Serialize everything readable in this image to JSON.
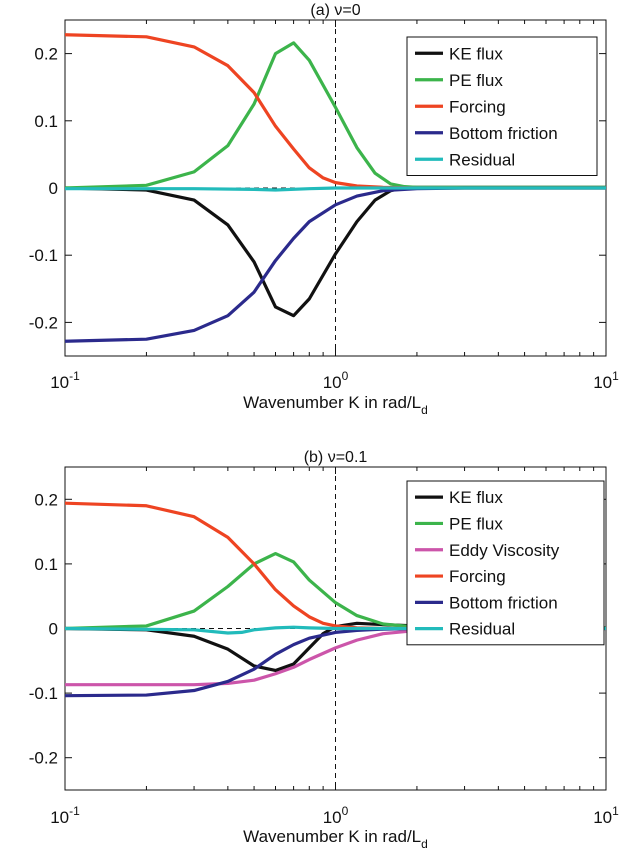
{
  "chart_data": [
    {
      "type": "line",
      "title": "(a) ν=0",
      "xlabel": "Wavenumber K in rad/L",
      "xlabel_subscript": "d",
      "xscale": "log",
      "xlim": [
        0.1,
        10
      ],
      "ylim": [
        -0.25,
        0.25
      ],
      "xticks": [
        {
          "value": 0.1,
          "base": "10",
          "exp": "-1"
        },
        {
          "value": 1,
          "base": "10",
          "exp": "0"
        },
        {
          "value": 10,
          "base": "10",
          "exp": "1"
        }
      ],
      "yticks": [
        {
          "value": -0.2,
          "label": "-0.2"
        },
        {
          "value": -0.1,
          "label": "-0.1"
        },
        {
          "value": 0,
          "label": "0"
        },
        {
          "value": 0.1,
          "label": "0.1"
        },
        {
          "value": 0.2,
          "label": "0.2"
        }
      ],
      "grid": false,
      "vline_x": 1,
      "hline_y": 0,
      "legend_position": "top-right",
      "series": [
        {
          "name": "KE flux",
          "color": "#111111",
          "points": [
            [
              0.1,
              0
            ],
            [
              0.2,
              -0.003
            ],
            [
              0.3,
              -0.018
            ],
            [
              0.4,
              -0.055
            ],
            [
              0.5,
              -0.11
            ],
            [
              0.6,
              -0.177
            ],
            [
              0.7,
              -0.19
            ],
            [
              0.8,
              -0.165
            ],
            [
              1.0,
              -0.098
            ],
            [
              1.2,
              -0.05
            ],
            [
              1.4,
              -0.018
            ],
            [
              1.6,
              -0.004
            ],
            [
              1.8,
              0.001
            ],
            [
              2.0,
              0.001
            ],
            [
              3,
              0.001
            ],
            [
              5,
              0.001
            ],
            [
              10,
              0.001
            ]
          ]
        },
        {
          "name": "PE flux",
          "color": "#3cb44b",
          "points": [
            [
              0.1,
              0
            ],
            [
              0.2,
              0.004
            ],
            [
              0.3,
              0.024
            ],
            [
              0.4,
              0.063
            ],
            [
              0.5,
              0.125
            ],
            [
              0.6,
              0.2
            ],
            [
              0.7,
              0.216
            ],
            [
              0.8,
              0.19
            ],
            [
              1.0,
              0.12
            ],
            [
              1.2,
              0.06
            ],
            [
              1.4,
              0.022
            ],
            [
              1.6,
              0.006
            ],
            [
              1.8,
              0.002
            ],
            [
              2.0,
              0.001
            ],
            [
              3,
              0.001
            ],
            [
              10,
              0.001
            ]
          ]
        },
        {
          "name": "Forcing",
          "color": "#ee4422",
          "points": [
            [
              0.1,
              0.228
            ],
            [
              0.2,
              0.225
            ],
            [
              0.3,
              0.21
            ],
            [
              0.4,
              0.182
            ],
            [
              0.5,
              0.142
            ],
            [
              0.6,
              0.092
            ],
            [
              0.7,
              0.058
            ],
            [
              0.8,
              0.03
            ],
            [
              0.9,
              0.015
            ],
            [
              1.0,
              0.008
            ],
            [
              1.2,
              0.003
            ],
            [
              1.5,
              0.001
            ],
            [
              2,
              0
            ],
            [
              10,
              0
            ]
          ]
        },
        {
          "name": "Bottom friction",
          "color": "#2b2a8c",
          "points": [
            [
              0.1,
              -0.228
            ],
            [
              0.2,
              -0.225
            ],
            [
              0.3,
              -0.212
            ],
            [
              0.4,
              -0.19
            ],
            [
              0.5,
              -0.155
            ],
            [
              0.6,
              -0.108
            ],
            [
              0.7,
              -0.075
            ],
            [
              0.8,
              -0.05
            ],
            [
              1.0,
              -0.025
            ],
            [
              1.2,
              -0.012
            ],
            [
              1.5,
              -0.004
            ],
            [
              2,
              -0.001
            ],
            [
              3,
              0
            ],
            [
              10,
              0
            ]
          ]
        },
        {
          "name": "Residual",
          "color": "#22bbbb",
          "points": [
            [
              0.1,
              -0.001
            ],
            [
              0.3,
              -0.001
            ],
            [
              0.5,
              -0.002
            ],
            [
              0.6,
              -0.003
            ],
            [
              0.8,
              -0.001
            ],
            [
              1.0,
              0
            ],
            [
              10,
              0
            ]
          ]
        }
      ]
    },
    {
      "type": "line",
      "title": "(b) ν=0.1",
      "xlabel": "Wavenumber K in rad/L",
      "xlabel_subscript": "d",
      "xscale": "log",
      "xlim": [
        0.1,
        10
      ],
      "ylim": [
        -0.25,
        0.25
      ],
      "xticks": [
        {
          "value": 0.1,
          "base": "10",
          "exp": "-1"
        },
        {
          "value": 1,
          "base": "10",
          "exp": "0"
        },
        {
          "value": 10,
          "base": "10",
          "exp": "1"
        }
      ],
      "yticks": [
        {
          "value": -0.2,
          "label": "-0.2"
        },
        {
          "value": -0.1,
          "label": "-0.1"
        },
        {
          "value": 0,
          "label": "0"
        },
        {
          "value": 0.1,
          "label": "0.1"
        },
        {
          "value": 0.2,
          "label": "0.2"
        }
      ],
      "grid": false,
      "vline_x": 1,
      "hline_y": 0,
      "legend_position": "top-right",
      "series": [
        {
          "name": "KE flux",
          "color": "#111111",
          "points": [
            [
              0.1,
              0
            ],
            [
              0.2,
              -0.002
            ],
            [
              0.3,
              -0.012
            ],
            [
              0.4,
              -0.032
            ],
            [
              0.5,
              -0.058
            ],
            [
              0.6,
              -0.065
            ],
            [
              0.7,
              -0.055
            ],
            [
              0.8,
              -0.03
            ],
            [
              0.9,
              -0.008
            ],
            [
              1.0,
              0.003
            ],
            [
              1.2,
              0.008
            ],
            [
              1.5,
              0.006
            ],
            [
              2,
              0.004
            ],
            [
              3,
              0.002
            ],
            [
              10,
              0.001
            ]
          ]
        },
        {
          "name": "PE flux",
          "color": "#3cb44b",
          "points": [
            [
              0.1,
              0
            ],
            [
              0.2,
              0.004
            ],
            [
              0.3,
              0.027
            ],
            [
              0.4,
              0.065
            ],
            [
              0.5,
              0.1
            ],
            [
              0.6,
              0.116
            ],
            [
              0.7,
              0.103
            ],
            [
              0.8,
              0.075
            ],
            [
              1.0,
              0.04
            ],
            [
              1.2,
              0.02
            ],
            [
              1.5,
              0.007
            ],
            [
              2,
              0.002
            ],
            [
              3,
              0.001
            ],
            [
              10,
              0.001
            ]
          ]
        },
        {
          "name": "Eddy Viscosity",
          "color": "#cc55aa",
          "points": [
            [
              0.1,
              -0.087
            ],
            [
              0.2,
              -0.087
            ],
            [
              0.3,
              -0.087
            ],
            [
              0.4,
              -0.085
            ],
            [
              0.5,
              -0.08
            ],
            [
              0.6,
              -0.07
            ],
            [
              0.7,
              -0.06
            ],
            [
              0.8,
              -0.048
            ],
            [
              1.0,
              -0.03
            ],
            [
              1.2,
              -0.018
            ],
            [
              1.5,
              -0.008
            ],
            [
              2,
              -0.003
            ],
            [
              3,
              -0.001
            ],
            [
              10,
              0
            ]
          ]
        },
        {
          "name": "Forcing",
          "color": "#ee4422",
          "points": [
            [
              0.1,
              0.194
            ],
            [
              0.2,
              0.19
            ],
            [
              0.3,
              0.173
            ],
            [
              0.4,
              0.141
            ],
            [
              0.5,
              0.1
            ],
            [
              0.6,
              0.06
            ],
            [
              0.7,
              0.035
            ],
            [
              0.8,
              0.018
            ],
            [
              0.9,
              0.008
            ],
            [
              1.0,
              0.004
            ],
            [
              1.2,
              0.001
            ],
            [
              1.5,
              0
            ],
            [
              10,
              0
            ]
          ]
        },
        {
          "name": "Bottom friction",
          "color": "#2b2a8c",
          "points": [
            [
              0.1,
              -0.104
            ],
            [
              0.2,
              -0.103
            ],
            [
              0.3,
              -0.096
            ],
            [
              0.4,
              -0.082
            ],
            [
              0.5,
              -0.063
            ],
            [
              0.6,
              -0.04
            ],
            [
              0.7,
              -0.025
            ],
            [
              0.8,
              -0.015
            ],
            [
              1.0,
              -0.006
            ],
            [
              1.2,
              -0.003
            ],
            [
              1.5,
              -0.001
            ],
            [
              2,
              0
            ],
            [
              10,
              0
            ]
          ]
        },
        {
          "name": "Residual",
          "color": "#22bbbb",
          "points": [
            [
              0.1,
              0
            ],
            [
              0.3,
              -0.002
            ],
            [
              0.4,
              -0.007
            ],
            [
              0.45,
              -0.006
            ],
            [
              0.5,
              -0.002
            ],
            [
              0.6,
              0.001
            ],
            [
              0.7,
              0.002
            ],
            [
              0.8,
              0.001
            ],
            [
              1.0,
              0
            ],
            [
              10,
              0
            ]
          ]
        }
      ]
    }
  ]
}
